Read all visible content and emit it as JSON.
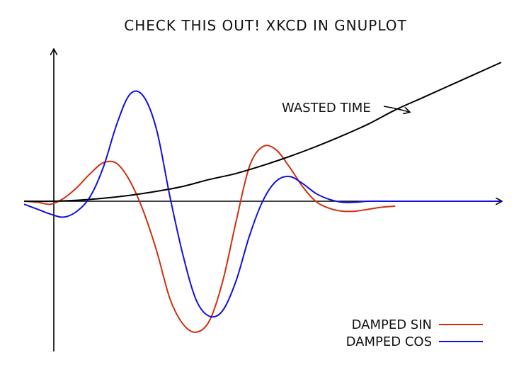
{
  "chart_data": {
    "type": "line",
    "title": "CHECK THIS OUT! XKCD IN GNUPLOT",
    "xlabel": "",
    "ylabel": "",
    "grid": false,
    "legend_position": "bottom-right",
    "xlim": [
      -1,
      17
    ],
    "ylim": [
      -1.4,
      1.45
    ],
    "annotation": {
      "text": "WASTED TIME",
      "points_to_x": 13.0
    },
    "series": [
      {
        "name": "DAMPED SIN",
        "color": "#d03010",
        "x": [
          -1,
          -0.5,
          0,
          0.5,
          1,
          1.5,
          2,
          2.5,
          3,
          3.5,
          4,
          4.5,
          5,
          5.5,
          6,
          6.5,
          7,
          7.5,
          8,
          8.5,
          9,
          9.5,
          10,
          10.5,
          11,
          11.5,
          12,
          12.5,
          13
        ],
        "y": [
          0.0,
          -0.01,
          -0.03,
          0.03,
          0.14,
          0.28,
          0.39,
          0.38,
          0.2,
          -0.1,
          -0.5,
          -0.98,
          -1.24,
          -1.32,
          -1.2,
          -0.8,
          -0.2,
          0.35,
          0.55,
          0.52,
          0.35,
          0.15,
          0.0,
          -0.07,
          -0.1,
          -0.1,
          -0.08,
          -0.06,
          -0.05
        ]
      },
      {
        "name": "DAMPED COS",
        "color": "#1010e0",
        "x": [
          -1,
          -0.5,
          0,
          0.5,
          1,
          1.5,
          2,
          2.5,
          3,
          3.5,
          4,
          4.5,
          5,
          5.5,
          6,
          6.5,
          7,
          7.5,
          8,
          8.5,
          9,
          9.5,
          10,
          10.5,
          11,
          11.5,
          12,
          13,
          14,
          15,
          16,
          17
        ],
        "y": [
          -0.03,
          -0.08,
          -0.13,
          -0.16,
          -0.1,
          0.05,
          0.35,
          0.78,
          1.08,
          1.06,
          0.72,
          0.05,
          -0.55,
          -1.0,
          -1.16,
          -1.1,
          -0.8,
          -0.35,
          0.0,
          0.2,
          0.25,
          0.18,
          0.08,
          0.02,
          -0.01,
          -0.01,
          0.0,
          0.0,
          0.0,
          0.0,
          0.0,
          0.0
        ]
      },
      {
        "name": "WASTED TIME",
        "color": "#000000",
        "x": [
          -1,
          0,
          1,
          2,
          3,
          4,
          5,
          6,
          7,
          8,
          9,
          10,
          11,
          12,
          13,
          14,
          15,
          16,
          17
        ],
        "y": [
          0.0,
          0.0,
          0.01,
          0.03,
          0.06,
          0.1,
          0.15,
          0.22,
          0.28,
          0.36,
          0.45,
          0.55,
          0.66,
          0.78,
          0.92,
          1.04,
          1.16,
          1.28,
          1.4
        ]
      }
    ],
    "legend": [
      "DAMPED SIN",
      "DAMPED COS"
    ]
  }
}
